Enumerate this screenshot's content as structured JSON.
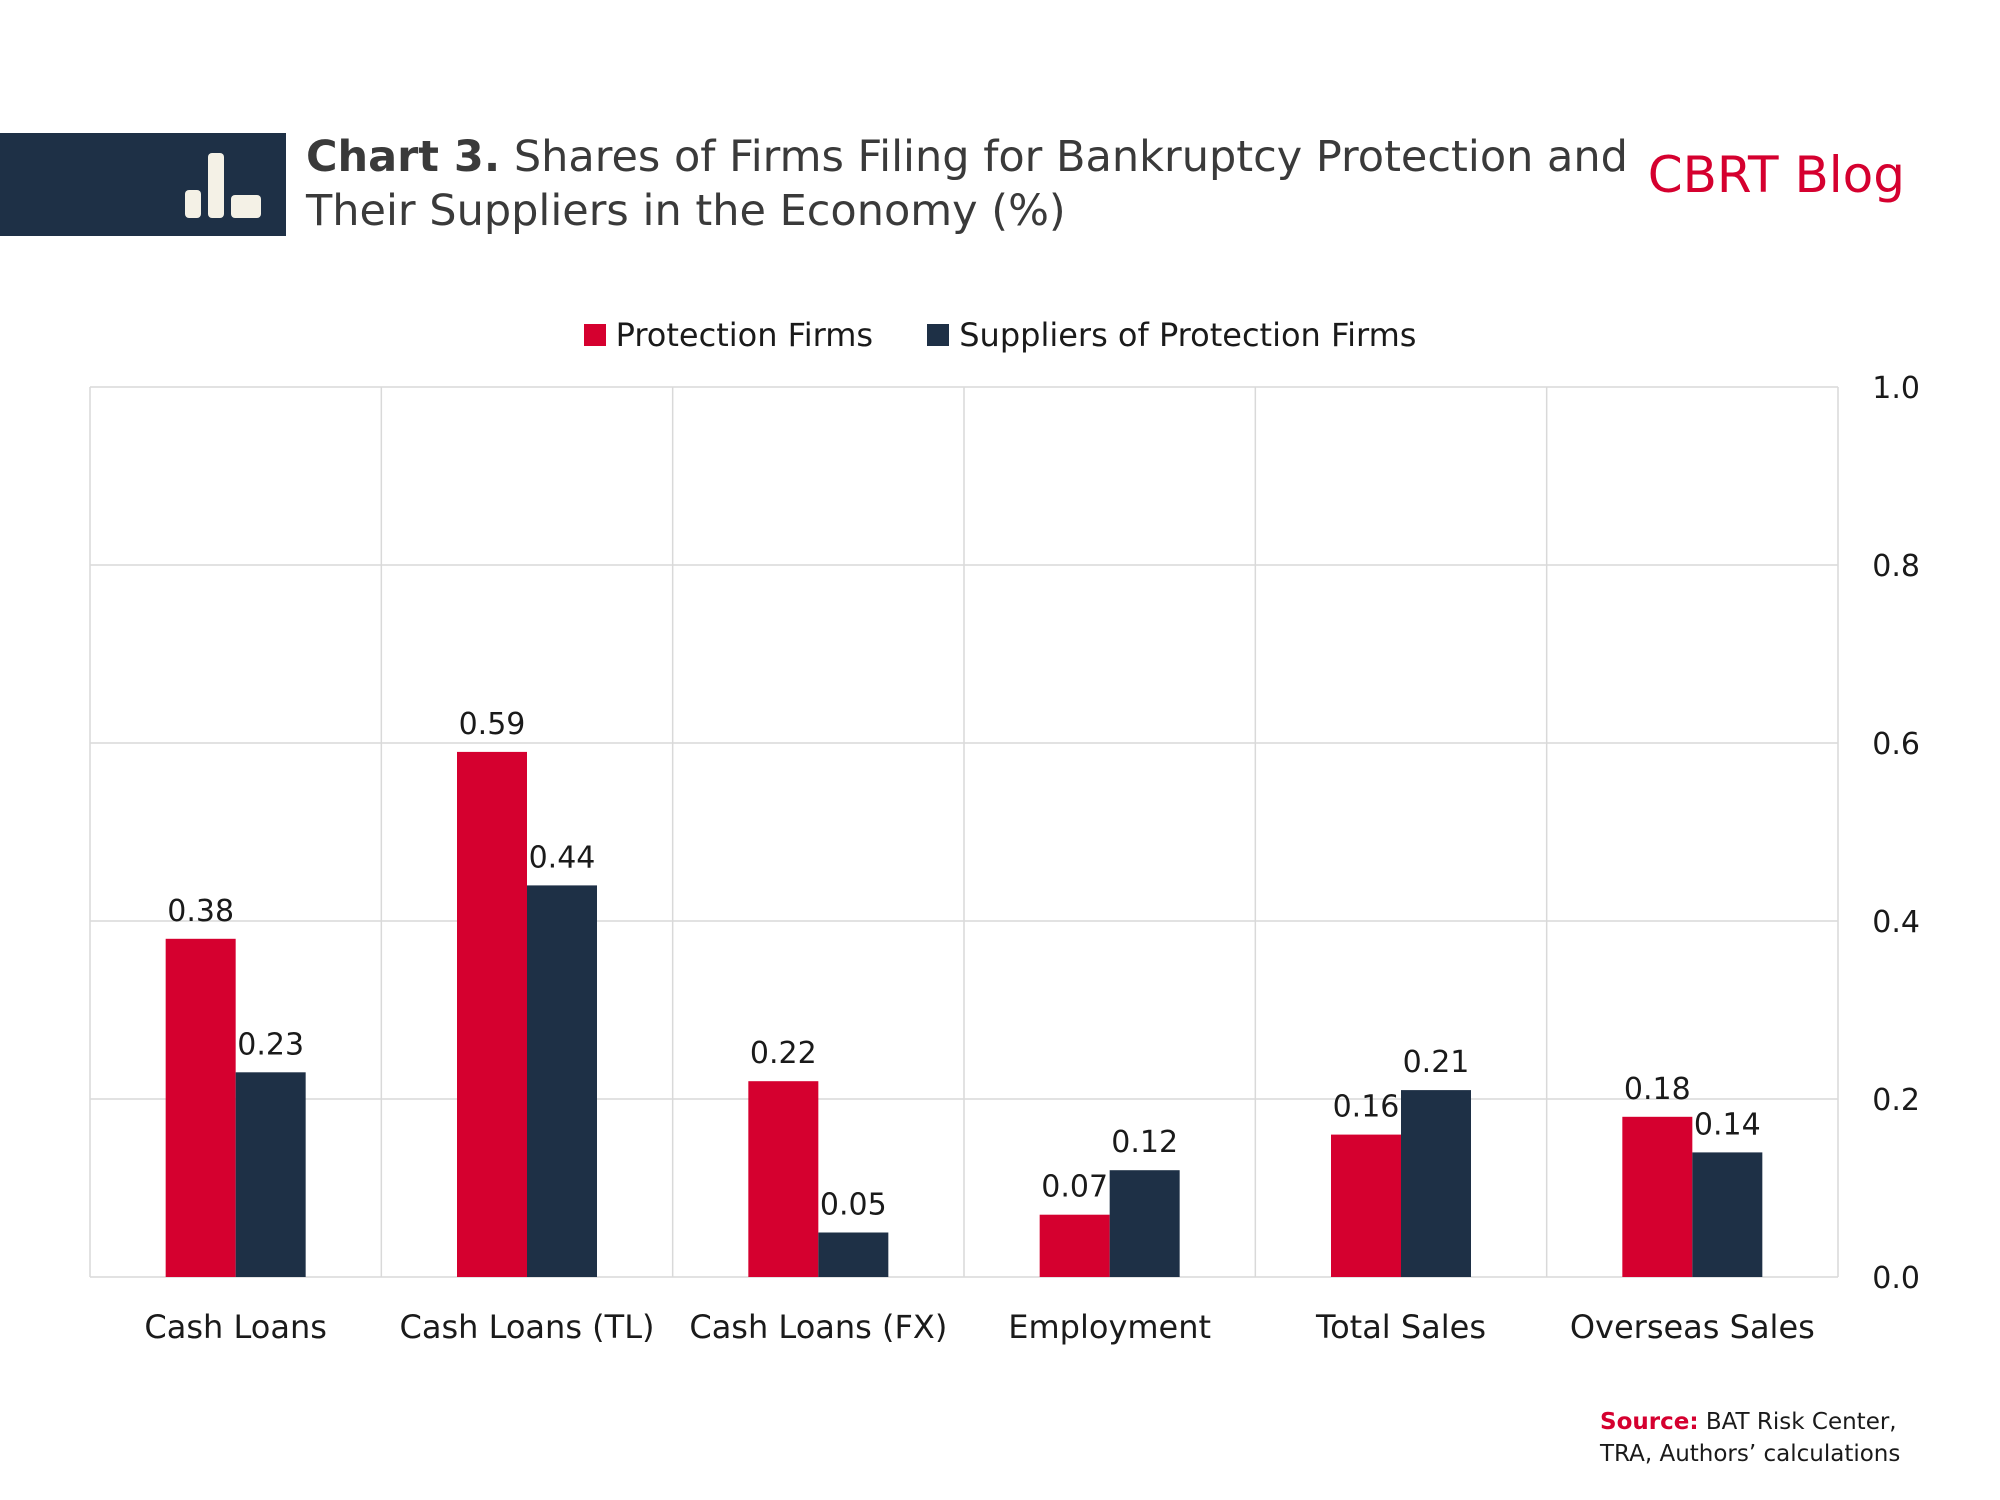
{
  "header": {
    "title_bold": "Chart 3.",
    "title_rest": "Shares of Firms Filing for Bankruptcy Protection and Their Suppliers in the Economy (%)",
    "brand": "CBRT Blog",
    "icon": "bar-chart-icon"
  },
  "source": {
    "label": "Source:",
    "line1": "BAT Risk Center,",
    "line2": "TRA, Authors’ calculations"
  },
  "colors": {
    "protection": "#d5002f",
    "suppliers": "#1e3046",
    "header_bg": "#1e3046",
    "grid": "#d9d9d9"
  },
  "chart_data": {
    "type": "bar",
    "title": "Shares of Firms Filing for Bankruptcy Protection and Their Suppliers in the Economy (%)",
    "categories": [
      "Cash Loans",
      "Cash Loans (TL)",
      "Cash Loans (FX)",
      "Employment",
      "Total Sales",
      "Overseas Sales"
    ],
    "series": [
      {
        "name": "Protection Firms",
        "values": [
          0.38,
          0.59,
          0.22,
          0.07,
          0.16,
          0.18
        ],
        "labels": [
          "0.38",
          "0.59",
          "0.22",
          "0.07",
          "0.16",
          "0.18"
        ]
      },
      {
        "name": "Suppliers of Protection Firms",
        "values": [
          0.23,
          0.44,
          0.05,
          0.12,
          0.21,
          0.14
        ],
        "labels": [
          "0.23",
          "0.44",
          "0.05",
          "0.12",
          "0.21",
          "0.14"
        ]
      }
    ],
    "ylim": [
      0,
      1.0
    ],
    "yticks": [
      "0.0",
      "0.2",
      "0.4",
      "0.6",
      "0.8",
      "1.0"
    ],
    "y_axis_side": "right",
    "grid": true,
    "legend_position": "top-center",
    "xlabel": "",
    "ylabel": ""
  }
}
